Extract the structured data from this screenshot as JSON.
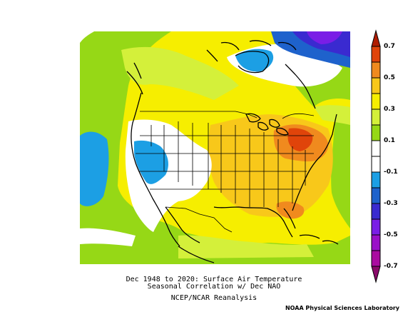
{
  "caption": {
    "line1": "Dec 1948 to 2020: Surface Air Temperature",
    "line2": "Seasonal Correlation w/ Dec NAO",
    "line3": "NCEP/NCAR Reanalysis"
  },
  "credit": "NOAA Physical Sciences Laboratory",
  "colorbar": {
    "labels": [
      "0.7",
      "0.5",
      "0.3",
      "0.1",
      "-0.1",
      "-0.3",
      "-0.5",
      "-0.7"
    ],
    "colors": {
      "gt_0_7": "#b01c00",
      "c_0_6_0_7": "#e0440a",
      "c_0_5_0_6": "#f08a1e",
      "c_0_4_0_5": "#f8c81a",
      "c_0_3_0_4": "#f6ee00",
      "c_0_2_0_3": "#d4f03a",
      "c_0_1_0_2": "#96d816",
      "neutral": "#ffffff",
      "c_m0_1_m0_2": "#1c9fe4",
      "c_m0_2_m0_3": "#1e62cc",
      "c_m0_3_m0_4": "#3a2ad0",
      "c_m0_4_m0_5": "#7a1ee6",
      "c_m0_5_m0_6": "#9a10c8",
      "c_m0_6_m0_7": "#aa0ca0",
      "lt_m0_7": "#8a0a6a"
    }
  }
}
